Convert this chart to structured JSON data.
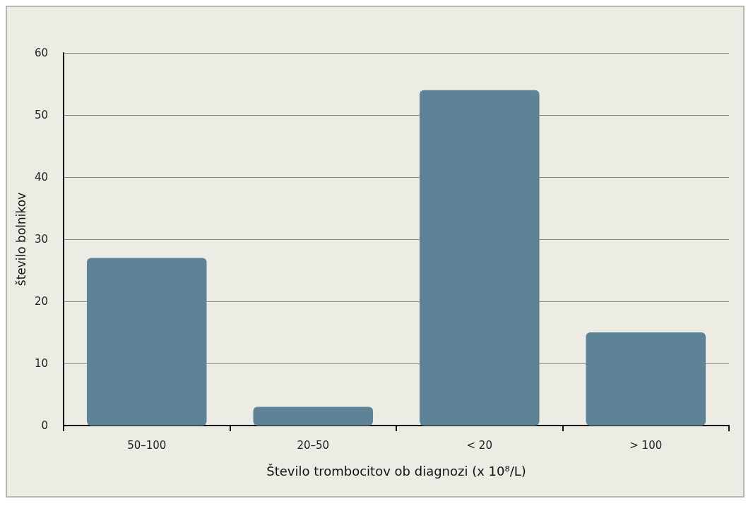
{
  "chart_data": {
    "type": "bar",
    "xlabel": "Število trombocitov ob diagnozi (x 10⁸/L)",
    "ylabel": "število bolnikov",
    "categories": [
      "50–100",
      "20–50",
      "< 20",
      "> 100"
    ],
    "values": [
      27,
      3,
      54,
      15
    ],
    "color": "#5f8396",
    "ylim": [
      0,
      60
    ],
    "yticks": [
      0,
      10,
      20,
      30,
      40,
      50,
      60
    ],
    "grid": "y"
  }
}
